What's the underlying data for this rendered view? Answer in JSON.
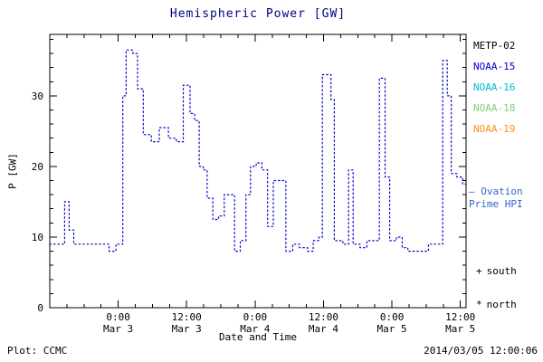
{
  "title": "Hemispheric Power [GW]",
  "footer": {
    "plot_credit": "Plot: CCMC",
    "timestamp": "2014/03/05 12:00:06"
  },
  "legend": {
    "satellites": [
      {
        "label": "METP-02",
        "color": "#000000"
      },
      {
        "label": "NOAA-15",
        "color": "#0000CD"
      },
      {
        "label": "NOAA-16",
        "color": "#00B8D4"
      },
      {
        "label": "NOAA-18",
        "color": "#7CCD7C"
      },
      {
        "label": "NOAA-19",
        "color": "#FF8C1A"
      }
    ],
    "ovation": {
      "line1": "— Ovation",
      "line2": "Prime HPI",
      "color": "#3366CC"
    },
    "south": {
      "symbol": "+",
      "label": "south"
    },
    "north": {
      "symbol": "*",
      "label": "north"
    }
  },
  "chart_data": {
    "type": "line",
    "step": true,
    "line_style": "dotted",
    "line_color": "#0000CC",
    "title": "Hemispheric Power [GW]",
    "xlabel": "Date and Time",
    "ylabel": "P [GW]",
    "xlim": [
      0,
      73
    ],
    "ylim": [
      0,
      38.7
    ],
    "yticks": [
      0,
      10,
      20,
      30
    ],
    "y_minor_step": 2,
    "x_minor_step": 3,
    "x_hours_origin": "Mar 2 12:00",
    "xticks": [
      {
        "t": 12,
        "time": "0:00",
        "date": "Mar 3"
      },
      {
        "t": 24,
        "time": "12:00",
        "date": "Mar 3"
      },
      {
        "t": 36,
        "time": "0:00",
        "date": "Mar 4"
      },
      {
        "t": 48,
        "time": "12:00",
        "date": "Mar 4"
      },
      {
        "t": 60,
        "time": "0:00",
        "date": "Mar 5"
      },
      {
        "t": 72,
        "time": "12:00",
        "date": "Mar 5"
      }
    ],
    "series": [
      {
        "name": "Ovation Prime HPI",
        "points": [
          [
            0,
            9
          ],
          [
            2,
            9
          ],
          [
            2.6,
            15
          ],
          [
            3.4,
            11
          ],
          [
            4.2,
            9
          ],
          [
            9.5,
            9
          ],
          [
            10.4,
            8
          ],
          [
            11.6,
            9
          ],
          [
            12.8,
            30
          ],
          [
            13.4,
            36.5
          ],
          [
            14.6,
            36
          ],
          [
            15.4,
            31
          ],
          [
            16.4,
            24.5
          ],
          [
            17.8,
            23.5
          ],
          [
            19.2,
            25.5
          ],
          [
            20.8,
            24
          ],
          [
            22.2,
            23.5
          ],
          [
            23.4,
            31.5
          ],
          [
            24.6,
            27.5
          ],
          [
            25.4,
            26.5
          ],
          [
            26.2,
            20
          ],
          [
            26.9,
            19.5
          ],
          [
            27.6,
            15.5
          ],
          [
            28.6,
            12.5
          ],
          [
            29.6,
            13
          ],
          [
            30.6,
            16
          ],
          [
            31.8,
            16
          ],
          [
            32.4,
            8
          ],
          [
            33.4,
            9.5
          ],
          [
            34.4,
            16
          ],
          [
            35.2,
            20
          ],
          [
            36.2,
            20.5
          ],
          [
            37.2,
            19.5
          ],
          [
            38.2,
            11.5
          ],
          [
            39.2,
            18
          ],
          [
            41.4,
            8
          ],
          [
            42.6,
            9
          ],
          [
            43.8,
            8.5
          ],
          [
            45.2,
            8
          ],
          [
            46.2,
            9.5
          ],
          [
            47.2,
            10
          ],
          [
            47.8,
            33
          ],
          [
            48.8,
            33
          ],
          [
            49.3,
            29.5
          ],
          [
            49.9,
            9.5
          ],
          [
            51.4,
            9
          ],
          [
            52.4,
            19.5
          ],
          [
            53.2,
            9
          ],
          [
            54.4,
            8.5
          ],
          [
            55.6,
            9.5
          ],
          [
            57.2,
            9.5
          ],
          [
            57.8,
            32.5
          ],
          [
            58.8,
            18.5
          ],
          [
            59.6,
            9.5
          ],
          [
            60.8,
            10
          ],
          [
            61.8,
            8.5
          ],
          [
            62.8,
            8
          ],
          [
            65.2,
            8
          ],
          [
            66.4,
            9
          ],
          [
            68.2,
            9
          ],
          [
            68.9,
            35
          ],
          [
            69.7,
            30
          ],
          [
            70.4,
            19
          ],
          [
            71.4,
            18.5
          ],
          [
            72.4,
            17.5
          ]
        ]
      }
    ]
  }
}
